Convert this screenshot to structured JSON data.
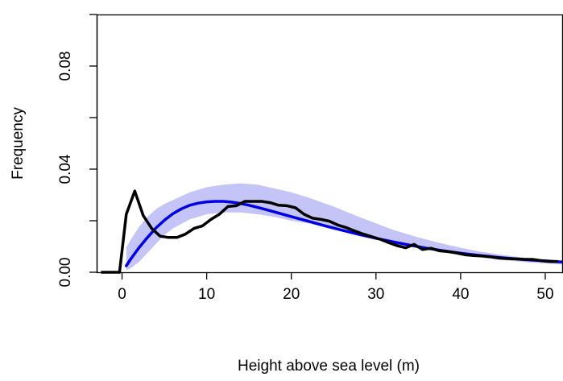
{
  "chart_data": {
    "type": "line",
    "title": "",
    "xlabel": "Height above sea level (m)",
    "ylabel": "Frequency",
    "xlim": [
      -3.0,
      52
    ],
    "ylim": [
      0,
      0.1
    ],
    "x_ticks": [
      0,
      10,
      20,
      30,
      40,
      50
    ],
    "y_ticks": [
      0.0,
      0.04,
      0.08
    ],
    "x_tick_labels": [
      "0",
      "10",
      "20",
      "30",
      "40",
      "50"
    ],
    "y_tick_labels": [
      "0.00",
      "0.04",
      "0.08"
    ],
    "grid": false,
    "legend": "none",
    "colors": {
      "fitted_line": "#0000e6",
      "confidence_band": "#c4c4f7",
      "observed_line": "#000000"
    },
    "band": {
      "x": [
        0.5,
        1,
        2,
        3,
        4,
        5,
        6,
        8,
        10,
        12,
        14,
        16,
        18,
        20,
        22,
        25,
        28,
        30,
        32,
        35,
        38,
        40,
        42,
        45,
        48,
        50,
        52
      ],
      "upper": [
        0.0095,
        0.0125,
        0.0175,
        0.0215,
        0.0245,
        0.0265,
        0.028,
        0.031,
        0.033,
        0.034,
        0.0345,
        0.034,
        0.0325,
        0.031,
        0.029,
        0.0255,
        0.0215,
        0.019,
        0.0165,
        0.0135,
        0.011,
        0.0095,
        0.0082,
        0.0067,
        0.0055,
        0.0049,
        0.0044
      ],
      "lower": [
        0.0008,
        0.0015,
        0.004,
        0.0075,
        0.011,
        0.0145,
        0.017,
        0.0205,
        0.0225,
        0.0232,
        0.0232,
        0.0225,
        0.0215,
        0.02,
        0.019,
        0.0168,
        0.0145,
        0.013,
        0.0115,
        0.0095,
        0.0078,
        0.0068,
        0.0058,
        0.0047,
        0.0038,
        0.0034,
        0.003
      ]
    },
    "series": [
      {
        "x": [
          0.5,
          1,
          2,
          3,
          4,
          5,
          6,
          7,
          8,
          9,
          10,
          11,
          12,
          13,
          14,
          15,
          16,
          17,
          18,
          20,
          22,
          24,
          26,
          28,
          30,
          32,
          34,
          36,
          38,
          40,
          42,
          44,
          46,
          48,
          50,
          52
        ],
        "y": [
          0.0025,
          0.005,
          0.0095,
          0.0135,
          0.0172,
          0.0202,
          0.0227,
          0.0246,
          0.026,
          0.0268,
          0.0273,
          0.0275,
          0.0275,
          0.0272,
          0.0267,
          0.026,
          0.0252,
          0.0243,
          0.0234,
          0.0216,
          0.0198,
          0.018,
          0.0163,
          0.0147,
          0.0132,
          0.0118,
          0.0105,
          0.0093,
          0.0083,
          0.0074,
          0.0066,
          0.0059,
          0.0053,
          0.0048,
          0.0044,
          0.004
        ]
      },
      {
        "x": [
          -2.5,
          -0.3,
          0.5,
          1.5,
          2.5,
          3.5,
          4.5,
          5.5,
          6.5,
          7.5,
          8.5,
          9.5,
          10.5,
          11.5,
          12.5,
          13.5,
          14.5,
          15.5,
          16.5,
          17.5,
          18.5,
          19.5,
          20.5,
          21.5,
          22.5,
          23.5,
          24.5,
          25.5,
          26.5,
          27.5,
          28.5,
          29.5,
          30.5,
          31.5,
          32.5,
          33.5,
          34.5,
          35.5,
          36.5,
          37.5,
          38.5,
          39.5,
          40.5,
          41.5,
          42.5,
          43.5,
          44.5,
          45.5,
          46.5,
          47.5,
          48.5,
          49.5,
          50.5,
          51.5
        ],
        "y": [
          0.0,
          0.0,
          0.0225,
          0.0315,
          0.022,
          0.017,
          0.014,
          0.0135,
          0.0135,
          0.0148,
          0.017,
          0.018,
          0.0205,
          0.0225,
          0.0255,
          0.0258,
          0.0275,
          0.0275,
          0.0275,
          0.027,
          0.026,
          0.0258,
          0.025,
          0.0225,
          0.021,
          0.0205,
          0.0198,
          0.0183,
          0.0173,
          0.016,
          0.0148,
          0.0138,
          0.0128,
          0.0115,
          0.0103,
          0.0095,
          0.0108,
          0.0088,
          0.0093,
          0.0083,
          0.008,
          0.0075,
          0.0068,
          0.0065,
          0.0063,
          0.006,
          0.0055,
          0.0053,
          0.0052,
          0.005,
          0.005,
          0.0045,
          0.0042,
          0.0042
        ]
      }
    ]
  }
}
